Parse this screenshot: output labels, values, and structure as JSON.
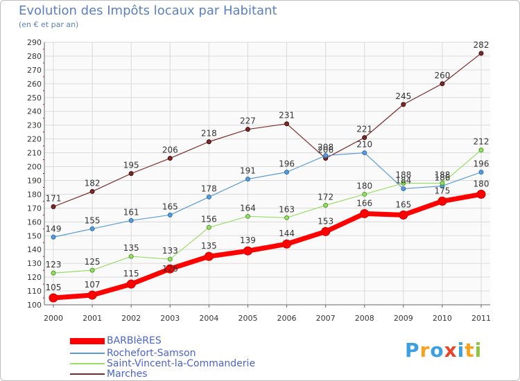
{
  "title": "Evolution des Impôts locaux par Habitant",
  "subtitle": "(en € et par an)",
  "logo": {
    "text": "Proxiti",
    "colors": [
      "#3aa0e0",
      "#f7a21c",
      "#3aa0e0",
      "#e8452c",
      "#3aa0e0",
      "#f7a21c",
      "#8cc63f"
    ]
  },
  "chart_data": {
    "type": "line",
    "x": [
      "2000",
      "2001",
      "2002",
      "2003",
      "2004",
      "2005",
      "2006",
      "2007",
      "2008",
      "2009",
      "2010",
      "2011"
    ],
    "ylim": [
      100,
      290
    ],
    "yticks": [
      "100",
      "110",
      "120",
      "130",
      "140",
      "150",
      "160",
      "170",
      "180",
      "190",
      "200",
      "210",
      "220",
      "230",
      "240",
      "250",
      "260",
      "270",
      "280",
      "290"
    ],
    "grid": true,
    "legend_position": "bottom-left",
    "series": [
      {
        "name": "BARBIèRES",
        "color": "#ff0000",
        "values": [
          105,
          107,
          115,
          126,
          135,
          139,
          144,
          153,
          166,
          165,
          175,
          180
        ],
        "labels": [
          "105",
          "107",
          "115",
          "",
          "135",
          "139",
          "144",
          "153",
          "166",
          "165",
          "175",
          "180"
        ]
      },
      {
        "name": "Rochefort-Samson",
        "color": "#5b9bd5",
        "values": [
          149,
          155,
          161,
          165,
          178,
          191,
          196,
          208,
          210,
          184,
          186,
          196
        ],
        "labels": [
          "149",
          "155",
          "161",
          "165",
          "178",
          "191",
          "196",
          "208",
          "210",
          "184",
          "186",
          "196"
        ]
      },
      {
        "name": "Saint-Vincent-la-Commanderie",
        "color": "#99dd66",
        "values": [
          123,
          125,
          135,
          133,
          156,
          164,
          163,
          172,
          180,
          188,
          188,
          212
        ],
        "labels": [
          "123",
          "125",
          "135",
          "133",
          "156",
          "164",
          "163",
          "172",
          "180",
          "188",
          "188",
          "212"
        ]
      },
      {
        "name": "Marches",
        "color": "#7a2a2a",
        "values": [
          171,
          182,
          195,
          206,
          218,
          227,
          231,
          206,
          221,
          245,
          260,
          282
        ],
        "labels": [
          "171",
          "182",
          "195",
          "206",
          "218",
          "227",
          "231",
          "206",
          "221",
          "245",
          "260",
          "282"
        ]
      }
    ],
    "extra_labels": [
      {
        "x": "2003",
        "value": 126,
        "text": "126"
      }
    ]
  }
}
